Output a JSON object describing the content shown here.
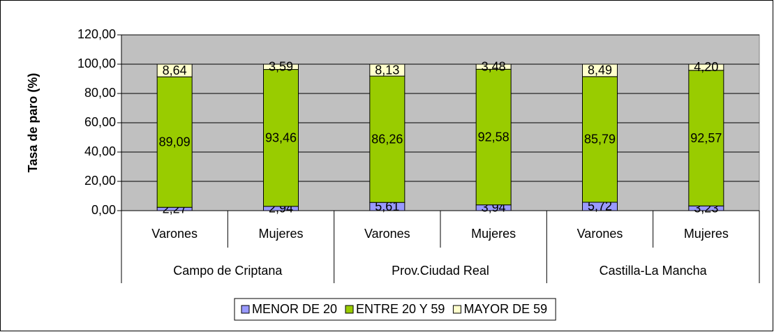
{
  "chart_data": {
    "type": "stacked_bar",
    "y_label": "Tasa de paro (%)",
    "categories": [
      "Varones",
      "Mujeres",
      "Varones",
      "Mujeres",
      "Varones",
      "Mujeres"
    ],
    "groups": [
      "Campo de Criptana",
      "Prov.Ciudad Real",
      "Castilla-La Mancha"
    ],
    "series": [
      {
        "name": "MENOR DE 20",
        "color": "#9999ff",
        "values": [
          2.27,
          2.94,
          5.61,
          3.94,
          5.72,
          3.23
        ],
        "value_labels": [
          "2,27",
          "2,94",
          "5,61",
          "3,94",
          "5,72",
          "3,23"
        ]
      },
      {
        "name": "ENTRE 20 Y 59",
        "color": "#99cc00",
        "values": [
          89.09,
          93.46,
          86.26,
          92.58,
          85.79,
          92.57
        ],
        "value_labels": [
          "89,09",
          "93,46",
          "86,26",
          "92,58",
          "85,79",
          "92,57"
        ]
      },
      {
        "name": "MAYOR DE 59",
        "color": "#ffffcc",
        "values": [
          8.64,
          3.59,
          8.13,
          3.48,
          8.49,
          4.2
        ],
        "value_labels": [
          "8,64",
          "3,59",
          "8,13",
          "3,48",
          "8,49",
          "4,20"
        ]
      }
    ],
    "ylim": [
      0,
      120
    ],
    "yticks": [
      {
        "value": 0,
        "label": "0,00"
      },
      {
        "value": 20,
        "label": "20,00"
      },
      {
        "value": 40,
        "label": "40,00"
      },
      {
        "value": 60,
        "label": "60,00"
      },
      {
        "value": 80,
        "label": "80,00"
      },
      {
        "value": 100,
        "label": "100,00"
      },
      {
        "value": 120,
        "label": "120,00"
      }
    ],
    "plot_background": "#c0c0c0",
    "legend": "bottom"
  }
}
